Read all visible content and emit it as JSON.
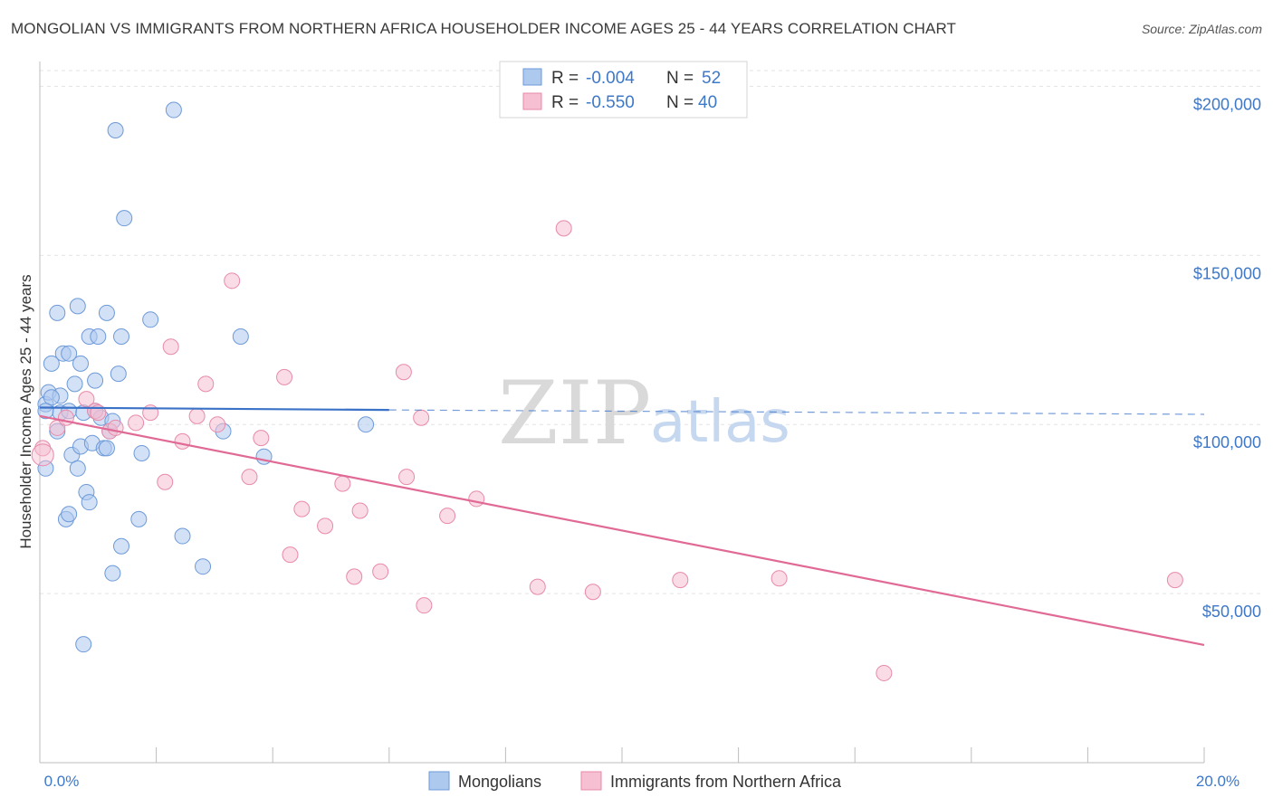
{
  "chart_data": {
    "type": "scatter",
    "title": "MONGOLIAN VS IMMIGRANTS FROM NORTHERN AFRICA HOUSEHOLDER INCOME AGES 25 - 44 YEARS CORRELATION CHART",
    "source": "Source: ZipAtlas.com",
    "ylabel": "Householder Income Ages 25 - 44 years",
    "xlim": [
      0,
      20
    ],
    "ylim": [
      0,
      210000
    ],
    "x_tick_labels": [
      "0.0%",
      "20.0%"
    ],
    "y_ticks": [
      {
        "value": 50000,
        "label": "$50,000"
      },
      {
        "value": 100000,
        "label": "$100,000"
      },
      {
        "value": 150000,
        "label": "$150,000"
      },
      {
        "value": 200000,
        "label": "$200,000"
      }
    ],
    "legend": {
      "r_label": "R =",
      "n_label": "N =",
      "entries": [
        {
          "name": "Mongolians",
          "r": "-0.004",
          "n": "52"
        },
        {
          "name": "Immigrants from Northern Africa",
          "r": "-0.550",
          "n": "40"
        }
      ]
    },
    "watermark": {
      "zip": "ZIP",
      "atlas": "atlas"
    },
    "colors": {
      "mongolians_fill": "#aec9ee",
      "mongolians_stroke": "#6d9ad8",
      "mongolians_line": "#3a72c8",
      "immigrants_fill": "#f6bfd2",
      "immigrants_stroke": "#e88aaa",
      "immigrants_line": "#e06a95",
      "tick_text": "#3d78c9",
      "grid": "#e3e3e3"
    },
    "series": [
      {
        "name": "Mongolians",
        "trend": {
          "x0": 0.0,
          "y0": 105000,
          "x1": 6.0,
          "y1": 104300,
          "x_dashed_end": 20.0,
          "y_dashed_end": 103000
        },
        "points": [
          [
            0.1,
            106000
          ],
          [
            0.1,
            87000
          ],
          [
            0.15,
            109500
          ],
          [
            0.2,
            118000
          ],
          [
            0.3,
            98000
          ],
          [
            0.3,
            133000
          ],
          [
            0.35,
            103500
          ],
          [
            0.35,
            108500
          ],
          [
            0.4,
            121000
          ],
          [
            0.45,
            72000
          ],
          [
            0.5,
            121000
          ],
          [
            0.5,
            104000
          ],
          [
            0.5,
            73500
          ],
          [
            0.55,
            91000
          ],
          [
            0.6,
            112000
          ],
          [
            0.65,
            135000
          ],
          [
            0.65,
            87000
          ],
          [
            0.7,
            118000
          ],
          [
            0.7,
            93500
          ],
          [
            0.75,
            103500
          ],
          [
            0.75,
            35000
          ],
          [
            0.8,
            80000
          ],
          [
            0.85,
            126000
          ],
          [
            0.85,
            77000
          ],
          [
            0.9,
            94500
          ],
          [
            0.95,
            113000
          ],
          [
            0.95,
            104000
          ],
          [
            1.0,
            126000
          ],
          [
            1.05,
            102000
          ],
          [
            1.1,
            93000
          ],
          [
            1.15,
            133000
          ],
          [
            1.2,
            98000
          ],
          [
            1.25,
            56000
          ],
          [
            1.25,
            101000
          ],
          [
            1.3,
            187000
          ],
          [
            1.35,
            115000
          ],
          [
            1.4,
            126000
          ],
          [
            1.4,
            64000
          ],
          [
            1.45,
            161000
          ],
          [
            1.7,
            72000
          ],
          [
            1.75,
            91500
          ],
          [
            1.9,
            131000
          ],
          [
            2.3,
            193000
          ],
          [
            2.45,
            67000
          ],
          [
            2.8,
            58000
          ],
          [
            3.15,
            98000
          ],
          [
            3.45,
            126000
          ],
          [
            3.85,
            90500
          ],
          [
            5.6,
            100000
          ],
          [
            0.2,
            108000
          ],
          [
            1.15,
            93000
          ],
          [
            0.1,
            104000
          ]
        ]
      },
      {
        "name": "Immigrants from Northern Africa",
        "trend": {
          "x0": 0.0,
          "y0": 102500,
          "x1": 20.0,
          "y1": 34800
        },
        "points": [
          [
            0.05,
            93000
          ],
          [
            0.3,
            99000
          ],
          [
            0.8,
            107500
          ],
          [
            0.95,
            104000
          ],
          [
            1.2,
            98000
          ],
          [
            1.3,
            99000
          ],
          [
            1.65,
            100500
          ],
          [
            1.9,
            103500
          ],
          [
            2.15,
            83000
          ],
          [
            2.25,
            123000
          ],
          [
            2.45,
            95000
          ],
          [
            2.7,
            102500
          ],
          [
            2.85,
            112000
          ],
          [
            3.05,
            100000
          ],
          [
            3.3,
            142500
          ],
          [
            3.6,
            84500
          ],
          [
            3.8,
            96000
          ],
          [
            4.2,
            114000
          ],
          [
            4.3,
            61500
          ],
          [
            4.5,
            75000
          ],
          [
            4.9,
            70000
          ],
          [
            5.2,
            82500
          ],
          [
            5.4,
            55000
          ],
          [
            5.5,
            74500
          ],
          [
            5.85,
            56500
          ],
          [
            6.25,
            115500
          ],
          [
            6.3,
            84500
          ],
          [
            6.55,
            102000
          ],
          [
            6.6,
            46500
          ],
          [
            7.0,
            73000
          ],
          [
            7.5,
            78000
          ],
          [
            8.55,
            52000
          ],
          [
            9.0,
            158000
          ],
          [
            9.5,
            50500
          ],
          [
            11.0,
            54000
          ],
          [
            12.7,
            54500
          ],
          [
            14.5,
            26500
          ],
          [
            19.5,
            54000
          ],
          [
            1.0,
            103500
          ],
          [
            0.45,
            102000
          ]
        ]
      }
    ]
  }
}
